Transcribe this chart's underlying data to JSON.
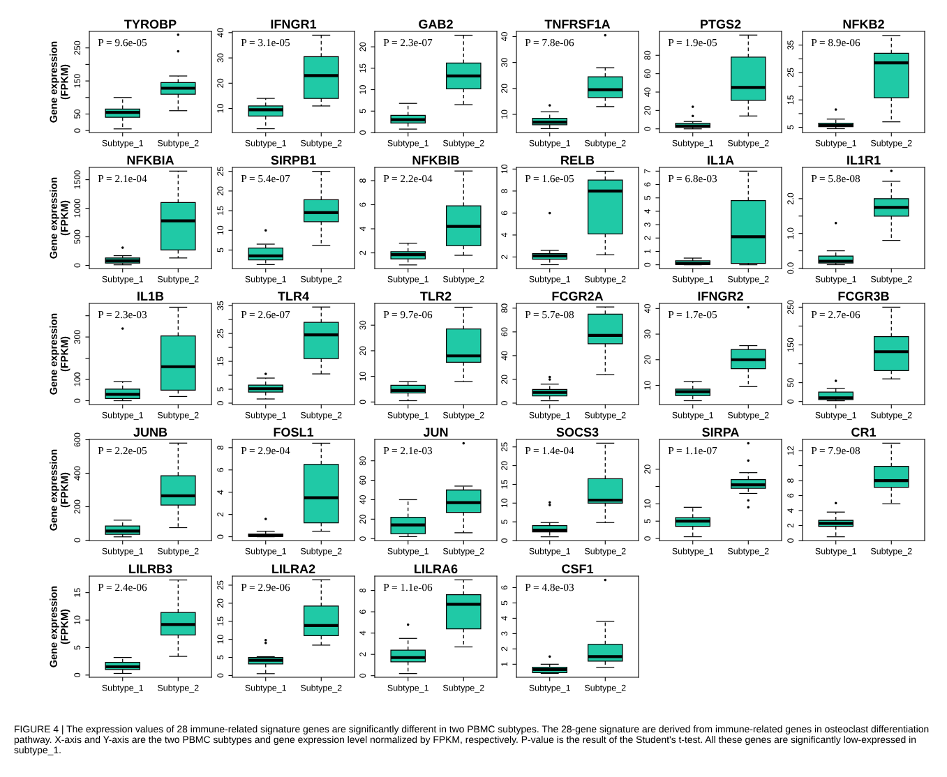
{
  "chart_data": [
    {
      "type": "box",
      "title": "TYROBP",
      "ylabel": "Gene expression\n(FPKM)",
      "categories": [
        "Subtype_1",
        "Subtype_2"
      ],
      "color": "#20c9a6",
      "annotations": [
        "P = 9.6e-05"
      ],
      "ylim": [
        -6,
        300
      ],
      "yticks": [
        0,
        50,
        {
          "value": 100,
          "label": null
        },
        150,
        {
          "value": 200,
          "label": null
        },
        250
      ],
      "boxes": [
        {
          "low": 5,
          "q1": 40,
          "median": 55,
          "q3": 65,
          "high": 100
        },
        {
          "low": 60,
          "q1": 110,
          "median": 128,
          "q3": 145,
          "high": 165,
          "outliers": [
            240,
            290
          ]
        }
      ]
    },
    {
      "type": "box",
      "title": "IFNGR1",
      "categories": [
        "Subtype_1",
        "Subtype_2"
      ],
      "color": "#20c9a6",
      "annotations": [
        "P = 3.1e-05"
      ],
      "ylim": [
        0.5,
        40.5
      ],
      "yticks": [
        10,
        20,
        30,
        40
      ],
      "boxes": [
        {
          "low": 2,
          "q1": 7,
          "median": 9.5,
          "q3": 11,
          "high": 14
        },
        {
          "low": 11,
          "q1": 14,
          "median": 23,
          "q3": 30.5,
          "high": 39
        }
      ]
    },
    {
      "type": "box",
      "title": "GAB2",
      "categories": [
        "Subtype_1",
        "Subtype_2"
      ],
      "color": "#20c9a6",
      "annotations": [
        "P = 2.3e-07"
      ],
      "ylim": [
        0,
        23.6
      ],
      "yticks": [
        0,
        5,
        10,
        15,
        20
      ],
      "boxes": [
        {
          "low": 0.8,
          "q1": 2.2,
          "median": 3,
          "q3": 4,
          "high": 6.8
        },
        {
          "low": 6.5,
          "q1": 10.2,
          "median": 13.2,
          "q3": 16.2,
          "high": 22.7
        }
      ]
    },
    {
      "type": "box",
      "title": "TNFRSF1A",
      "categories": [
        "Subtype_1",
        "Subtype_2"
      ],
      "color": "#20c9a6",
      "annotations": [
        "P = 7.8e-06"
      ],
      "ylim": [
        3,
        42
      ],
      "yticks": [
        10,
        20,
        30,
        40
      ],
      "boxes": [
        {
          "low": 4.5,
          "q1": 6,
          "median": 7,
          "q3": 8.5,
          "high": 11,
          "outliers": [
            13.5
          ]
        },
        {
          "low": 13,
          "q1": 16.5,
          "median": 19.5,
          "q3": 24.5,
          "high": 28,
          "outliers": [
            40.5
          ]
        }
      ]
    },
    {
      "type": "box",
      "title": "PTGS2",
      "categories": [
        "Subtype_1",
        "Subtype_2"
      ],
      "color": "#20c9a6",
      "annotations": [
        "P = 1.9e-05"
      ],
      "ylim": [
        -4,
        106
      ],
      "yticks": [
        0,
        20,
        40,
        60,
        80
      ],
      "boxes": [
        {
          "low": 0,
          "q1": 1.5,
          "median": 3,
          "q3": 6,
          "high": 8,
          "outliers": [
            14,
            24
          ]
        },
        {
          "low": 14,
          "q1": 31,
          "median": 45,
          "q3": 78,
          "high": 102
        }
      ]
    },
    {
      "type": "box",
      "title": "NFKB2",
      "categories": [
        "Subtype_1",
        "Subtype_2"
      ],
      "color": "#20c9a6",
      "annotations": [
        "P = 8.9e-06"
      ],
      "ylim": [
        3.1,
        40
      ],
      "yticks": [
        5,
        {
          "value": 10,
          "label": null
        },
        15,
        {
          "value": 20,
          "label": null
        },
        25,
        {
          "value": 30,
          "label": null
        },
        35
      ],
      "boxes": [
        {
          "low": 4.5,
          "q1": 5.2,
          "median": 5.7,
          "q3": 6.5,
          "high": 8,
          "outliers": [
            11.5
          ]
        },
        {
          "low": 7,
          "q1": 15.8,
          "median": 28.5,
          "q3": 32,
          "high": 38.5
        }
      ]
    },
    {
      "type": "box",
      "title": "NFKBIA",
      "ylabel": "Gene expression\n(FPKM)",
      "categories": [
        "Subtype_1",
        "Subtype_2"
      ],
      "color": "#20c9a6",
      "annotations": [
        "P = 2.1e-04"
      ],
      "ylim": [
        -55,
        1715
      ],
      "yticks": [
        0,
        500,
        1000,
        1500
      ],
      "boxes": [
        {
          "low": 10,
          "q1": 40,
          "median": 80,
          "q3": 130,
          "high": 170,
          "outliers": [
            310
          ]
        },
        {
          "low": 130,
          "q1": 270,
          "median": 780,
          "q3": 1100,
          "high": 1650
        }
      ]
    },
    {
      "type": "box",
      "title": "SIRPB1",
      "categories": [
        "Subtype_1",
        "Subtype_2"
      ],
      "color": "#20c9a6",
      "annotations": [
        "P = 5.4e-07"
      ],
      "ylim": [
        0.3,
        26
      ],
      "yticks": [
        5,
        10,
        15,
        20,
        25
      ],
      "boxes": [
        {
          "low": 1.3,
          "q1": 2.5,
          "median": 3.5,
          "q3": 5.5,
          "high": 6.5,
          "outliers": [
            10
          ]
        },
        {
          "low": 6.2,
          "q1": 12.2,
          "median": 14.5,
          "q3": 17.8,
          "high": 25
        }
      ]
    },
    {
      "type": "box",
      "title": "NFKBIB",
      "categories": [
        "Subtype_1",
        "Subtype_2"
      ],
      "color": "#20c9a6",
      "annotations": [
        "P = 2.2e-04"
      ],
      "ylim": [
        0.7,
        9.1
      ],
      "yticks": [
        2,
        4,
        6,
        8
      ],
      "boxes": [
        {
          "low": 1,
          "q1": 1.5,
          "median": 1.85,
          "q3": 2.1,
          "high": 2.8
        },
        {
          "low": 1.8,
          "q1": 2.6,
          "median": 4.2,
          "q3": 5.9,
          "high": 8.8
        }
      ]
    },
    {
      "type": "box",
      "title": "RELB",
      "categories": [
        "Subtype_1",
        "Subtype_2"
      ],
      "color": "#20c9a6",
      "annotations": [
        "P = 1.6e-05"
      ],
      "ylim": [
        0.95,
        10.15
      ],
      "yticks": [
        2,
        4,
        6,
        8,
        10
      ],
      "boxes": [
        {
          "low": 1.3,
          "q1": 1.8,
          "median": 2.1,
          "q3": 2.3,
          "high": 2.6,
          "outliers": [
            6
          ]
        },
        {
          "low": 2.2,
          "q1": 4.1,
          "median": 8,
          "q3": 9,
          "high": 9.8
        }
      ]
    },
    {
      "type": "box",
      "title": "IL1A",
      "categories": [
        "Subtype_1",
        "Subtype_2"
      ],
      "color": "#20c9a6",
      "annotations": [
        "P = 6.8e-03"
      ],
      "ylim": [
        -0.28,
        7.28
      ],
      "yticks": [
        0,
        1,
        2,
        3,
        4,
        5,
        6,
        7
      ],
      "boxes": [
        {
          "low": 0,
          "q1": 0.02,
          "median": 0.1,
          "q3": 0.3,
          "high": 0.5
        },
        {
          "low": 0,
          "q1": 0.1,
          "median": 2.1,
          "q3": 4.8,
          "high": 7
        }
      ]
    },
    {
      "type": "box",
      "title": "IL1R1",
      "categories": [
        "Subtype_1",
        "Subtype_2"
      ],
      "color": "#20c9a6",
      "annotations": [
        "P = 5.8e-08"
      ],
      "ylim": [
        -0.01,
        2.9
      ],
      "yticks": [
        {
          "value": 0,
          "label": "0.0"
        },
        {
          "value": 0.5,
          "label": null
        },
        {
          "value": 1,
          "label": "1.0"
        },
        {
          "value": 1.5,
          "label": null
        },
        {
          "value": 2,
          "label": "2.0"
        }
      ],
      "boxes": [
        {
          "low": 0.1,
          "q1": 0.15,
          "median": 0.2,
          "q3": 0.35,
          "high": 0.5,
          "outliers": [
            1.3
          ]
        },
        {
          "low": 0.8,
          "q1": 1.5,
          "median": 1.75,
          "q3": 2,
          "high": 2.5,
          "outliers": [
            2.8
          ]
        }
      ]
    },
    {
      "type": "box",
      "title": "IL1B",
      "ylabel": "Gene expression\n(FPKM)",
      "categories": [
        "Subtype_1",
        "Subtype_2"
      ],
      "color": "#20c9a6",
      "annotations": [
        "P = 2.3e-03"
      ],
      "ylim": [
        -18,
        458
      ],
      "yticks": [
        0,
        100,
        {
          "value": 200,
          "label": null
        },
        300,
        {
          "value": 400,
          "label": null
        }
      ],
      "boxes": [
        {
          "low": 0,
          "q1": 10,
          "median": 30,
          "q3": 55,
          "high": 90,
          "outliers": [
            340
          ]
        },
        {
          "low": 20,
          "q1": 50,
          "median": 160,
          "q3": 305,
          "high": 440
        }
      ]
    },
    {
      "type": "box",
      "title": "TLR4",
      "categories": [
        "Subtype_1",
        "Subtype_2"
      ],
      "color": "#20c9a6",
      "annotations": [
        "P = 2.6e-07"
      ],
      "ylim": [
        -0.5,
        35.8
      ],
      "yticks": [
        0,
        5,
        {
          "value": 10,
          "label": null
        },
        15,
        {
          "value": 20,
          "label": null
        },
        25,
        {
          "value": 30,
          "label": null
        },
        35
      ],
      "boxes": [
        {
          "low": 1.5,
          "q1": 4,
          "median": 5.2,
          "q3": 6.5,
          "high": 9,
          "outliers": [
            10.5
          ]
        },
        {
          "low": 10.5,
          "q1": 16,
          "median": 24.5,
          "q3": 29,
          "high": 34.5
        }
      ]
    },
    {
      "type": "box",
      "title": "TLR2",
      "categories": [
        "Subtype_1",
        "Subtype_2"
      ],
      "color": "#20c9a6",
      "annotations": [
        "P = 9.7e-06"
      ],
      "ylim": [
        -1,
        38.5
      ],
      "yticks": [
        0,
        10,
        20,
        30
      ],
      "boxes": [
        {
          "low": 0.5,
          "q1": 3.5,
          "median": 4.5,
          "q3": 6.5,
          "high": 8
        },
        {
          "low": 8,
          "q1": 15.5,
          "median": 18,
          "q3": 28.5,
          "high": 37
        }
      ]
    },
    {
      "type": "box",
      "title": "FCGR2A",
      "categories": [
        "Subtype_1",
        "Subtype_2"
      ],
      "color": "#20c9a6",
      "annotations": [
        "P = 5.7e-08"
      ],
      "ylim": [
        -1.2,
        84
      ],
      "yticks": [
        0,
        20,
        40,
        60,
        80
      ],
      "boxes": [
        {
          "low": 2,
          "q1": 6,
          "median": 9,
          "q3": 11.5,
          "high": 16,
          "outliers": [
            20,
            22
          ]
        },
        {
          "low": 24,
          "q1": 50,
          "median": 57,
          "q3": 75,
          "high": 81
        }
      ]
    },
    {
      "type": "box",
      "title": "IFNGR2",
      "categories": [
        "Subtype_1",
        "Subtype_2"
      ],
      "color": "#20c9a6",
      "annotations": [
        "P = 1.7e-05"
      ],
      "ylim": [
        2.5,
        42
      ],
      "yticks": [
        10,
        20,
        30,
        40
      ],
      "boxes": [
        {
          "low": 4,
          "q1": 6,
          "median": 7.5,
          "q3": 8.5,
          "high": 11.5
        },
        {
          "low": 9.5,
          "q1": 16.5,
          "median": 20,
          "q3": 24,
          "high": 25.5,
          "outliers": [
            40.5
          ]
        }
      ]
    },
    {
      "type": "box",
      "title": "FCGR3B",
      "categories": [
        "Subtype_1",
        "Subtype_2"
      ],
      "color": "#20c9a6",
      "annotations": [
        "P = 2.7e-06"
      ],
      "ylim": [
        -8,
        260
      ],
      "yticks": [
        0,
        50,
        {
          "value": 100,
          "label": null
        },
        150,
        {
          "value": 200,
          "label": null
        },
        250
      ],
      "boxes": [
        {
          "low": 2,
          "q1": 5,
          "median": 10,
          "q3": 25,
          "high": 35,
          "outliers": [
            55
          ]
        },
        {
          "low": 60,
          "q1": 82,
          "median": 132,
          "q3": 172,
          "high": 250
        }
      ]
    },
    {
      "type": "box",
      "title": "JUNB",
      "ylabel": "Gene expression\n(FPKM)",
      "categories": [
        "Subtype_1",
        "Subtype_2"
      ],
      "color": "#20c9a6",
      "annotations": [
        "P = 2.2e-05"
      ],
      "ylim": [
        -2,
        602
      ],
      "yticks": [
        0,
        200,
        400,
        600
      ],
      "boxes": [
        {
          "low": 20,
          "q1": 35,
          "median": 55,
          "q3": 85,
          "high": 120
        },
        {
          "low": 75,
          "q1": 210,
          "median": 265,
          "q3": 385,
          "high": 580
        }
      ]
    },
    {
      "type": "box",
      "title": "FOSL1",
      "categories": [
        "Subtype_1",
        "Subtype_2"
      ],
      "color": "#20c9a6",
      "annotations": [
        "P = 2.9e-04"
      ],
      "ylim": [
        -0.34,
        8.74
      ],
      "yticks": [
        0,
        2,
        4,
        6,
        8
      ],
      "boxes": [
        {
          "low": 0,
          "q1": 0.05,
          "median": 0.1,
          "q3": 0.25,
          "high": 0.5,
          "outliers": [
            1.6
          ]
        },
        {
          "low": 0.5,
          "q1": 1.25,
          "median": 3.5,
          "q3": 6.5,
          "high": 8.4
        }
      ]
    },
    {
      "type": "box",
      "title": "JUN",
      "categories": [
        "Subtype_1",
        "Subtype_2"
      ],
      "color": "#20c9a6",
      "annotations": [
        "P = 2.1e-03"
      ],
      "ylim": [
        -2,
        102
      ],
      "yticks": [
        0,
        20,
        40,
        60,
        80
      ],
      "boxes": [
        {
          "low": 2,
          "q1": 5,
          "median": 14,
          "q3": 22,
          "high": 40
        },
        {
          "low": 6,
          "q1": 27,
          "median": 37,
          "q3": 50,
          "high": 54,
          "outliers": [
            98
          ]
        }
      ]
    },
    {
      "type": "box",
      "title": "SOCS3",
      "categories": [
        "Subtype_1",
        "Subtype_2"
      ],
      "color": "#20c9a6",
      "annotations": [
        "P = 1.4e-04"
      ],
      "ylim": [
        0,
        27
      ],
      "yticks": [
        0,
        5,
        10,
        15,
        20,
        25
      ],
      "boxes": [
        {
          "low": 1,
          "q1": 2.3,
          "median": 2.8,
          "q3": 4,
          "high": 4.8,
          "outliers": [
            9.5,
            10.2
          ]
        },
        {
          "low": 4.8,
          "q1": 10,
          "median": 10.8,
          "q3": 16.5,
          "high": 26
        }
      ]
    },
    {
      "type": "box",
      "title": "SIRPA",
      "categories": [
        "Subtype_1",
        "Subtype_2"
      ],
      "color": "#20c9a6",
      "annotations": [
        "P = 1.1e-07"
      ],
      "ylim": [
        -0.6,
        28.6
      ],
      "yticks": [
        0,
        5,
        10,
        {
          "value": 15,
          "label": null
        },
        20
      ],
      "boxes": [
        {
          "low": 0.5,
          "q1": 3.5,
          "median": 5,
          "q3": 6,
          "high": 9
        },
        {
          "low": 13,
          "q1": 14.5,
          "median": 15.5,
          "q3": 17,
          "high": 19,
          "outliers": [
            9,
            11,
            22.5,
            27.5
          ]
        }
      ]
    },
    {
      "type": "box",
      "title": "CR1",
      "categories": [
        "Subtype_1",
        "Subtype_2"
      ],
      "color": "#20c9a6",
      "annotations": [
        "P = 7.9e-08"
      ],
      "ylim": [
        0,
        13.5
      ],
      "yticks": [
        0,
        2,
        4,
        6,
        8,
        {
          "value": 10,
          "label": null
        },
        12
      ],
      "boxes": [
        {
          "low": 0.5,
          "q1": 1.9,
          "median": 2.3,
          "q3": 2.7,
          "high": 3.8,
          "outliers": [
            5
          ]
        },
        {
          "low": 4.9,
          "q1": 7.1,
          "median": 8,
          "q3": 9.9,
          "high": 13
        }
      ]
    },
    {
      "type": "box",
      "title": "LILRB3",
      "ylabel": "Gene expression\n(FPKM)",
      "categories": [
        "Subtype_1",
        "Subtype_2"
      ],
      "color": "#20c9a6",
      "annotations": [
        "P = 2.4e-06"
      ],
      "ylim": [
        -0.4,
        18
      ],
      "yticks": [
        0,
        5,
        10,
        15
      ],
      "boxes": [
        {
          "low": 0.3,
          "q1": 1,
          "median": 1.5,
          "q3": 2.3,
          "high": 3.2
        },
        {
          "low": 3.4,
          "q1": 7.3,
          "median": 9.2,
          "q3": 11.4,
          "high": 17.3
        }
      ]
    },
    {
      "type": "box",
      "title": "LILRA2",
      "categories": [
        "Subtype_1",
        "Subtype_2"
      ],
      "color": "#20c9a6",
      "annotations": [
        "P = 2.9e-06"
      ],
      "ylim": [
        -0.5,
        27.5
      ],
      "yticks": [
        0,
        5,
        10,
        15,
        20,
        25
      ],
      "boxes": [
        {
          "low": 0.5,
          "q1": 3.2,
          "median": 4.2,
          "q3": 5,
          "high": 5.2,
          "outliers": [
            9,
            9.8
          ]
        },
        {
          "low": 8.4,
          "q1": 11,
          "median": 13.8,
          "q3": 19.2,
          "high": 26.5
        }
      ]
    },
    {
      "type": "box",
      "title": "LILRA6",
      "categories": [
        "Subtype_1",
        "Subtype_2"
      ],
      "color": "#20c9a6",
      "annotations": [
        "P = 1.1e-06"
      ],
      "ylim": [
        -0.15,
        9.35
      ],
      "yticks": [
        0,
        2,
        4,
        6,
        8
      ],
      "boxes": [
        {
          "low": 0.2,
          "q1": 1.3,
          "median": 1.7,
          "q3": 2.4,
          "high": 3.5,
          "outliers": [
            4.8
          ]
        },
        {
          "low": 2.7,
          "q1": 4.4,
          "median": 6.7,
          "q3": 7.6,
          "high": 9
        }
      ]
    },
    {
      "type": "box",
      "title": "CSF1",
      "categories": [
        "Subtype_1",
        "Subtype_2"
      ],
      "color": "#20c9a6",
      "annotations": [
        "P = 4.8e-03",
        "FIGURE 4 | The expression values of 28 immune-related signature genes are significantly different in two PBMC subtypes. The 28-gene signature are derived from immune-related genes in osteoclast differentiation pathway. X-axis and Y-axis are the two PBMC subtypes and gene expression level normalized by FPKM, respectively. P-value is the result of the Student's t-test. All these genes are significantly low-expressed in subtype_1."
      ],
      "ylim": [
        0.15,
        6.75
      ],
      "yticks": [
        1,
        2,
        3,
        4,
        5,
        6
      ],
      "boxes": [
        {
          "low": 0.4,
          "q1": 0.45,
          "median": 0.65,
          "q3": 0.8,
          "high": 1,
          "outliers": [
            1.5
          ]
        },
        {
          "low": 0.8,
          "q1": 1.2,
          "median": 1.5,
          "q3": 2.3,
          "high": 3.8,
          "outliers": [
            6.5
          ]
        }
      ]
    }
  ]
}
